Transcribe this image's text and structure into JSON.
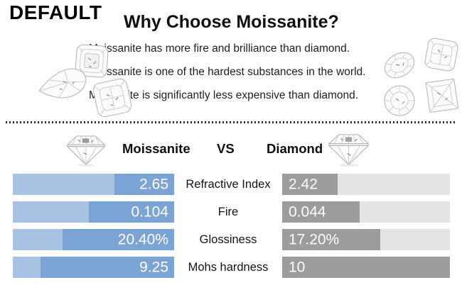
{
  "badge_label": "DEFAULT",
  "header": {
    "title": "Why Choose Moissanite?"
  },
  "bullets": [
    "Moissanite has more fire and brilliance than diamond.",
    "Moissanite is one of the hardest substances in the world.",
    "Mossanite is significantly less expensive than diamond."
  ],
  "comparison_header": {
    "left_label": "Moissanite",
    "vs_label": "VS",
    "right_label": "Diamond"
  },
  "chart_data": {
    "type": "bar",
    "title": "Moissanite VS Diamond",
    "orientation": "horizontal-mirrored",
    "categories": [
      "Refractive Index",
      "Fire",
      "Glossiness",
      "Mohs hardness"
    ],
    "series": [
      {
        "name": "Moissanite",
        "values": [
          2.65,
          0.104,
          20.4,
          9.25
        ],
        "display_values": [
          "2.65",
          "0.104",
          "20.40%",
          "9.25"
        ],
        "bar_color_light": "#a7c2e3",
        "bar_color_dark": "#7ba3d4",
        "accent_fractions": [
          0.37,
          0.53,
          0.69,
          0.83
        ],
        "value_align": "right"
      },
      {
        "name": "Diamond",
        "values": [
          2.42,
          0.044,
          17.2,
          10
        ],
        "display_values": [
          "2.42",
          "0.044",
          "17.20%",
          "10"
        ],
        "bar_color_light": "#e4e4e4",
        "bar_color_dark": "#9c9c9c",
        "accent_fractions": [
          0.33,
          0.46,
          0.585,
          1.0
        ],
        "value_align": "left"
      }
    ],
    "value_text_color": "#ffffff",
    "label_text_color": "#141414",
    "legend_position": "none",
    "grid": false
  },
  "icons": {
    "left_header_icon": "round-brilliant-diamond-icon",
    "right_header_icon": "round-brilliant-diamond-icon",
    "left_cluster": [
      "pear-gem-icon",
      "asscher-gem-icon",
      "cushion-gem-icon"
    ],
    "right_cluster": [
      "oval-gem-icon",
      "cushion-gem-icon",
      "round-gem-icon",
      "princess-gem-icon"
    ]
  },
  "colors": {
    "background": "#ffffff",
    "heading_text": "#101010",
    "body_text": "#202020",
    "divider": "#2e2e2e"
  }
}
